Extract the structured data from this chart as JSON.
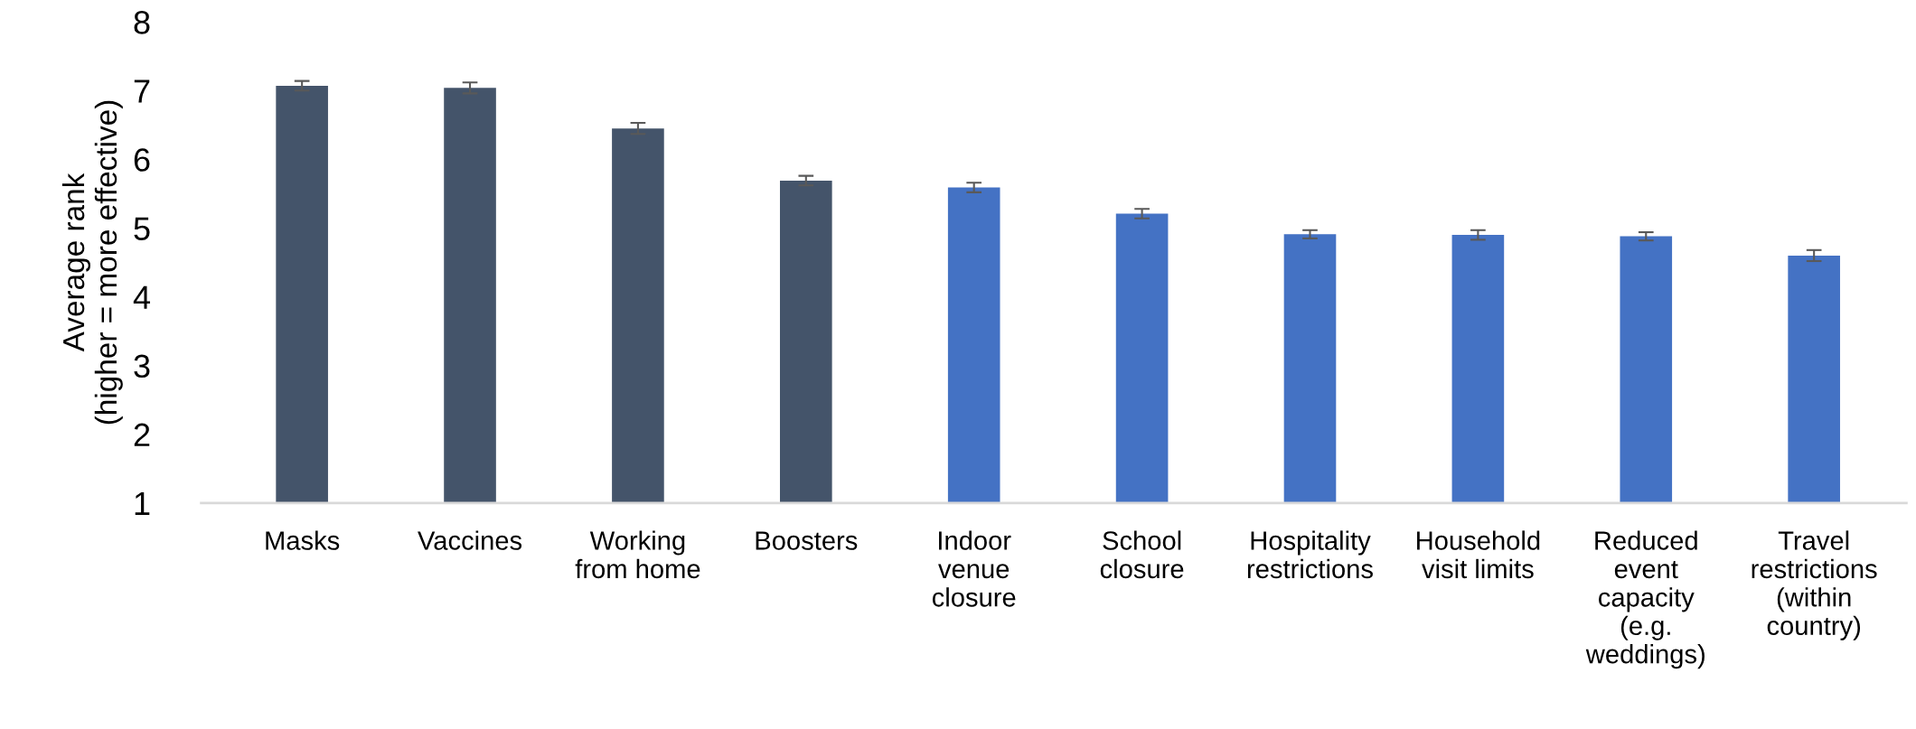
{
  "chart_data": {
    "type": "bar",
    "ylabel": "Average rank\n(higher = more effective)",
    "categories": [
      "Masks",
      "Vaccines",
      "Working\nfrom home",
      "Boosters",
      "Indoor\nvenue\nclosure",
      "School\nclosure",
      "Hospitality\nrestrictions",
      "Household\nvisit limits",
      "Reduced\nevent\ncapacity\n(e.g.\nweddings)",
      "Travel\nrestrictions\n(within\ncountry)"
    ],
    "values": [
      7.07,
      7.04,
      6.45,
      5.69,
      5.59,
      5.21,
      4.91,
      4.9,
      4.88,
      4.6
    ],
    "errors": [
      0.07,
      0.08,
      0.08,
      0.07,
      0.07,
      0.07,
      0.06,
      0.07,
      0.06,
      0.08
    ],
    "colors": [
      "#44546a",
      "#44546a",
      "#44546a",
      "#44546a",
      "#4472c4",
      "#4472c4",
      "#4472c4",
      "#4472c4",
      "#4472c4",
      "#4472c4"
    ],
    "ylim": [
      1,
      8
    ],
    "yticks": [
      1,
      2,
      3,
      4,
      5,
      6,
      7,
      8
    ],
    "grid": false,
    "legend": false
  }
}
